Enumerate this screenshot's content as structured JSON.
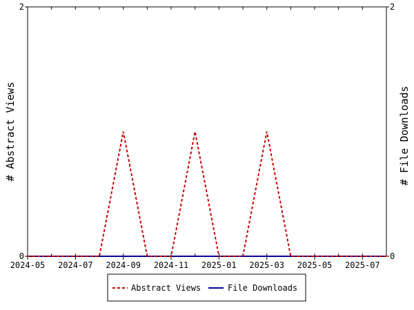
{
  "chart_data": {
    "type": "line",
    "y_left_label": "# Abstract Views",
    "y_right_label": "# File Downloads",
    "ylim_left": [
      0,
      2
    ],
    "ylim_right": [
      0,
      2
    ],
    "y_left_ticks": [
      "0",
      "2"
    ],
    "y_right_ticks": [
      "0",
      "2"
    ],
    "x_tick_labels": [
      "2024-05",
      "2024-07",
      "2024-09",
      "2024-11",
      "2025-01",
      "2025-03",
      "2025-05",
      "2025-07"
    ],
    "x_months": [
      "2024-05",
      "2024-06",
      "2024-07",
      "2024-08",
      "2024-09",
      "2024-10",
      "2024-11",
      "2024-12",
      "2025-01",
      "2025-02",
      "2025-03",
      "2025-04",
      "2025-05",
      "2025-06",
      "2025-07",
      "2025-08"
    ],
    "grid": false,
    "legend_position": "bottom",
    "series": [
      {
        "name": "Abstract Views",
        "color": "#cc0000",
        "dash": "dashed",
        "values": [
          0,
          0,
          0,
          0,
          1,
          0,
          0,
          1,
          0,
          0,
          1,
          0,
          0,
          0,
          0,
          0
        ]
      },
      {
        "name": "File Downloads",
        "color": "#000099",
        "dash": "solid",
        "values": [
          0,
          0,
          0,
          0,
          0,
          0,
          0,
          0,
          0,
          0,
          0,
          0,
          0,
          0,
          0,
          0
        ]
      }
    ]
  }
}
